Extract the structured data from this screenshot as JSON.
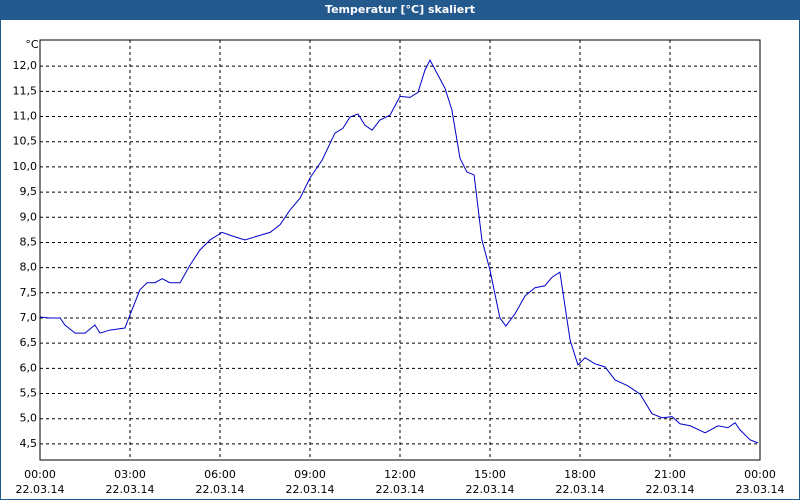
{
  "chart_data": {
    "type": "line",
    "title": "Temperatur [°C] skaliert",
    "y_unit": "°C",
    "x": [
      0,
      0.33,
      0.67,
      0.83,
      1.17,
      1.5,
      1.83,
      2.0,
      2.33,
      2.83,
      3.0,
      3.33,
      3.57,
      3.83,
      4.07,
      4.33,
      4.67,
      5.0,
      5.33,
      5.67,
      6.07,
      6.4,
      6.83,
      7.27,
      7.67,
      8.0,
      8.33,
      8.67,
      9.0,
      9.4,
      9.83,
      10.1,
      10.33,
      10.6,
      10.83,
      11.07,
      11.33,
      11.67,
      12.0,
      12.33,
      12.6,
      12.83,
      13.0,
      13.27,
      13.5,
      13.73,
      14.0,
      14.23,
      14.47,
      14.73,
      15.0,
      15.33,
      15.53,
      15.83,
      16.17,
      16.5,
      16.83,
      17.07,
      17.33,
      17.67,
      17.93,
      18.17,
      18.5,
      18.83,
      19.17,
      19.6,
      20.0,
      20.4,
      20.73,
      21.07,
      21.33,
      21.67,
      22.17,
      22.6,
      22.93,
      23.17,
      23.33,
      23.67,
      23.93
    ],
    "series": [
      {
        "name": "Temperatur",
        "color": "#0000cc",
        "values": [
          7.02,
          7.0,
          7.0,
          6.86,
          6.7,
          6.7,
          6.86,
          6.7,
          6.76,
          6.8,
          7.06,
          7.56,
          7.7,
          7.7,
          7.78,
          7.7,
          7.7,
          8.05,
          8.35,
          8.55,
          8.7,
          8.63,
          8.55,
          8.63,
          8.7,
          8.85,
          9.14,
          9.38,
          9.78,
          10.13,
          10.67,
          10.77,
          10.99,
          11.05,
          10.83,
          10.73,
          10.93,
          11.03,
          11.4,
          11.38,
          11.48,
          11.92,
          12.12,
          11.82,
          11.56,
          11.13,
          10.17,
          9.9,
          9.84,
          8.55,
          7.95,
          7.0,
          6.84,
          7.08,
          7.44,
          7.6,
          7.64,
          7.81,
          7.91,
          6.56,
          6.07,
          6.21,
          6.09,
          6.03,
          5.77,
          5.65,
          5.49,
          5.1,
          5.02,
          5.04,
          4.9,
          4.86,
          4.72,
          4.86,
          4.82,
          4.92,
          4.78,
          4.58,
          4.52
        ]
      }
    ],
    "xlim": [
      0,
      24
    ],
    "xticks": [
      {
        "value": 0,
        "label": "00:00",
        "sublabel": "22.03.14"
      },
      {
        "value": 3,
        "label": "03:00",
        "sublabel": "22.03.14"
      },
      {
        "value": 6,
        "label": "06:00",
        "sublabel": "22.03.14"
      },
      {
        "value": 9,
        "label": "09:00",
        "sublabel": "22.03.14"
      },
      {
        "value": 12,
        "label": "12:00",
        "sublabel": "22.03.14"
      },
      {
        "value": 15,
        "label": "15:00",
        "sublabel": "22.03.14"
      },
      {
        "value": 18,
        "label": "18:00",
        "sublabel": "22.03.14"
      },
      {
        "value": 21,
        "label": "21:00",
        "sublabel": "22.03.14"
      },
      {
        "value": 24,
        "label": "00:00",
        "sublabel": "23.03.14"
      }
    ],
    "ylim": [
      4.18,
      12.52
    ],
    "yticks": [
      {
        "value": 4.5,
        "label": "4,5"
      },
      {
        "value": 5,
        "label": "5,0"
      },
      {
        "value": 5.5,
        "label": "5,5"
      },
      {
        "value": 6,
        "label": "6,0"
      },
      {
        "value": 6.5,
        "label": "6,5"
      },
      {
        "value": 7,
        "label": "7,0"
      },
      {
        "value": 7.5,
        "label": "7,5"
      },
      {
        "value": 8,
        "label": "8,0"
      },
      {
        "value": 8.5,
        "label": "8,5"
      },
      {
        "value": 9,
        "label": "9,0"
      },
      {
        "value": 9.5,
        "label": "9,5"
      },
      {
        "value": 10,
        "label": "10,0"
      },
      {
        "value": 10.5,
        "label": "10,5"
      },
      {
        "value": 11,
        "label": "11,0"
      },
      {
        "value": 11.5,
        "label": "11,5"
      },
      {
        "value": 12,
        "label": "12,0"
      }
    ],
    "grid": true
  }
}
